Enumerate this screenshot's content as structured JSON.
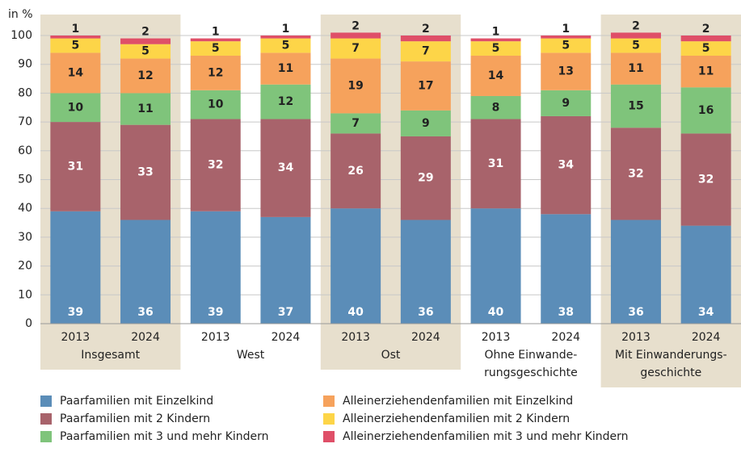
{
  "chart_data": {
    "type": "stacked-bar",
    "y_label": "in %",
    "categories": [
      "2013",
      "2024",
      "2013",
      "2024",
      "2013",
      "2024",
      "2013",
      "2024",
      "2013",
      "2024"
    ],
    "groups": [
      {
        "label": [
          "Insgesamt"
        ],
        "shaded": true
      },
      {
        "label": [
          "West"
        ],
        "shaded": false
      },
      {
        "label": [
          "Ost"
        ],
        "shaded": true
      },
      {
        "label": [
          "Ohne Einwande-",
          "rungsgeschichte"
        ],
        "shaded": false
      },
      {
        "label": [
          "Mit Einwanderungs-",
          "geschichte"
        ],
        "shaded": true
      }
    ],
    "series": [
      {
        "name": "Paarfamilien mit Einzelkind",
        "color": "#5b8db8",
        "label_color": "#ffffff",
        "values": [
          39,
          36,
          39,
          37,
          40,
          36,
          40,
          38,
          36,
          34
        ]
      },
      {
        "name": "Paarfamilien mit 2 Kindern",
        "color": "#a8636b",
        "label_color": "#ffffff",
        "values": [
          31,
          33,
          32,
          34,
          26,
          29,
          31,
          34,
          32,
          32
        ]
      },
      {
        "name": "Paarfamilien mit 3 und mehr Kindern",
        "color": "#7fc47b",
        "label_color": "#222222",
        "values": [
          10,
          11,
          10,
          12,
          7,
          9,
          8,
          9,
          15,
          16
        ]
      },
      {
        "name": "Alleinerziehendenfamilien mit Einzelkind",
        "color": "#f6a25c",
        "label_color": "#222222",
        "values": [
          14,
          12,
          12,
          11,
          19,
          17,
          14,
          13,
          11,
          11
        ]
      },
      {
        "name": "Alleinerziehendenfamilien mit 2 Kindern",
        "color": "#fdd548",
        "label_color": "#222222",
        "values": [
          5,
          5,
          5,
          5,
          7,
          7,
          5,
          5,
          5,
          5
        ]
      },
      {
        "name": "Alleinerziehendenfamilien mit 3 und mehr Kindern",
        "color": "#df4f68",
        "label_color": "#222222",
        "values": [
          1,
          2,
          1,
          1,
          2,
          2,
          1,
          1,
          2,
          2
        ]
      }
    ],
    "ylim": [
      0,
      100
    ],
    "yticks": [
      0,
      10,
      20,
      30,
      40,
      50,
      60,
      70,
      80,
      90,
      100
    ],
    "grid": true
  }
}
